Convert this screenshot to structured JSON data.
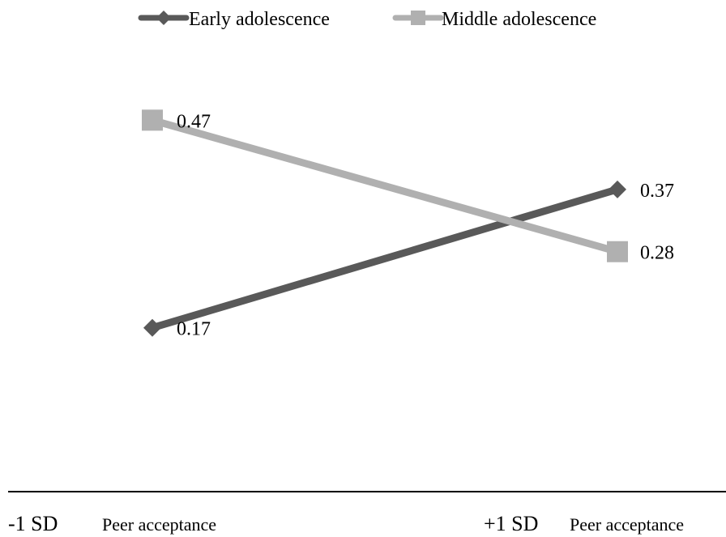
{
  "chart_data": {
    "type": "line",
    "categories": [
      {
        "sd": "-1 SD",
        "label": "Peer acceptance"
      },
      {
        "sd": "+1 SD",
        "label": "Peer acceptance"
      }
    ],
    "series": [
      {
        "name": "Early adolescence",
        "values": [
          0.17,
          0.37
        ],
        "color": "#595959",
        "marker": "diamond"
      },
      {
        "name": "Middle adolescence",
        "values": [
          0.47,
          0.28
        ],
        "color": "#b0b0b0",
        "marker": "square"
      }
    ],
    "data_labels": {
      "Early adolescence": [
        "0.17",
        "0.37"
      ],
      "Middle adolescence": [
        "0.47",
        "0.28"
      ]
    },
    "legend": "top",
    "grid": false,
    "ylim": [
      0.0,
      0.55
    ]
  }
}
